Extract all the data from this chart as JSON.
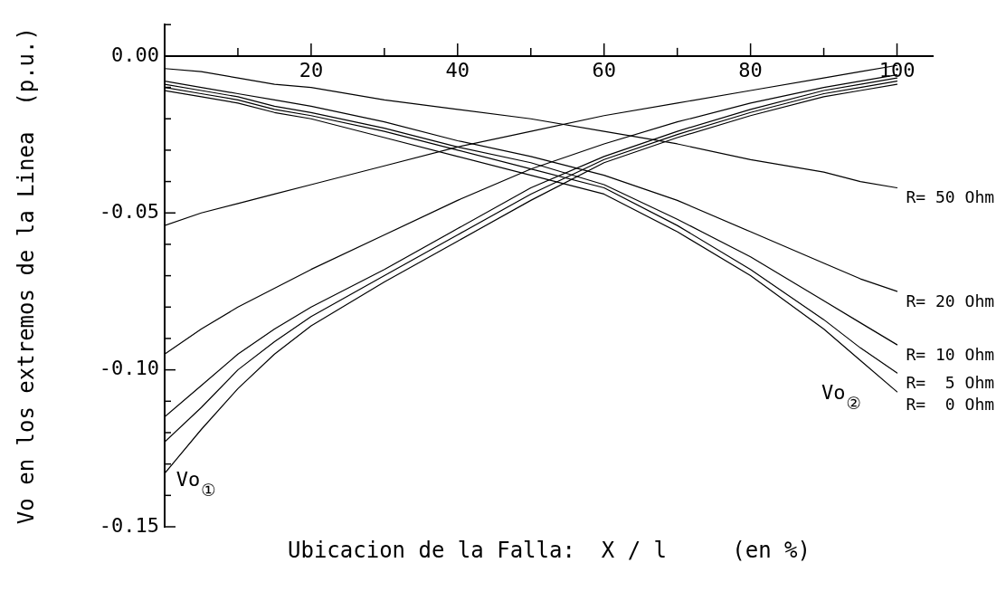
{
  "chart_data": {
    "type": "line",
    "xlabel": "Ubicacion de la Falla:  X / l     (en %)",
    "ylabel": "Vo en los extremos de la Linea  (p.u.)",
    "x": [
      0,
      5,
      10,
      15,
      20,
      30,
      40,
      50,
      60,
      70,
      80,
      90,
      95,
      100
    ],
    "series": [
      {
        "color": "#000000",
        "values": [
          -0.054,
          -0.05,
          -0.047,
          -0.044,
          -0.041,
          -0.035,
          -0.029,
          -0.024,
          -0.019,
          -0.015,
          -0.011,
          -0.007,
          -0.005,
          -0.003
        ]
      },
      {
        "color": "#000000",
        "values": [
          -0.095,
          -0.087,
          -0.08,
          -0.074,
          -0.068,
          -0.057,
          -0.046,
          -0.036,
          -0.028,
          -0.021,
          -0.015,
          -0.01,
          -0.008,
          -0.006
        ]
      },
      {
        "color": "#000000",
        "values": [
          -0.115,
          -0.105,
          -0.095,
          -0.087,
          -0.08,
          -0.068,
          -0.055,
          -0.042,
          -0.032,
          -0.024,
          -0.017,
          -0.011,
          -0.009,
          -0.007
        ]
      },
      {
        "color": "#000000",
        "values": [
          -0.123,
          -0.112,
          -0.1,
          -0.091,
          -0.083,
          -0.07,
          -0.057,
          -0.044,
          -0.033,
          -0.025,
          -0.018,
          -0.012,
          -0.01,
          -0.008
        ]
      },
      {
        "color": "#000000",
        "values": [
          -0.133,
          -0.119,
          -0.106,
          -0.095,
          -0.086,
          -0.072,
          -0.059,
          -0.046,
          -0.034,
          -0.026,
          -0.019,
          -0.013,
          -0.011,
          -0.009
        ]
      },
      {
        "name": "R= 50 Ohm",
        "color": "#000000",
        "values": [
          -0.004,
          -0.005,
          -0.007,
          -0.009,
          -0.01,
          -0.014,
          -0.017,
          -0.02,
          -0.024,
          -0.028,
          -0.033,
          -0.037,
          -0.04,
          -0.042
        ]
      },
      {
        "name": "R= 20 Ohm",
        "color": "#000000",
        "values": [
          -0.008,
          -0.01,
          -0.012,
          -0.014,
          -0.016,
          -0.021,
          -0.027,
          -0.032,
          -0.038,
          -0.046,
          -0.056,
          -0.066,
          -0.071,
          -0.075
        ]
      },
      {
        "name": "R= 10 Ohm",
        "color": "#000000",
        "values": [
          -0.009,
          -0.011,
          -0.013,
          -0.016,
          -0.018,
          -0.023,
          -0.029,
          -0.034,
          -0.041,
          -0.052,
          -0.064,
          -0.078,
          -0.085,
          -0.092
        ]
      },
      {
        "name": "R=  5 Ohm",
        "color": "#000000",
        "values": [
          -0.01,
          -0.012,
          -0.014,
          -0.017,
          -0.019,
          -0.024,
          -0.03,
          -0.036,
          -0.042,
          -0.054,
          -0.068,
          -0.084,
          -0.093,
          -0.101
        ]
      },
      {
        "name": "R=  0 Ohm",
        "color": "#000000",
        "values": [
          -0.011,
          -0.013,
          -0.015,
          -0.018,
          -0.02,
          -0.026,
          -0.032,
          -0.038,
          -0.044,
          -0.056,
          -0.07,
          -0.087,
          -0.097,
          -0.107
        ]
      }
    ],
    "xlim": [
      0,
      105
    ],
    "ylim": [
      -0.15,
      0.01
    ],
    "xticks": [
      {
        "value": 10,
        "label": null
      },
      20,
      {
        "value": 30,
        "label": null
      },
      40,
      {
        "value": 50,
        "label": null
      },
      60,
      {
        "value": 70,
        "label": null
      },
      80,
      {
        "value": 90,
        "label": null
      },
      100
    ],
    "yticks": [
      {
        "value": 0.01,
        "label": null
      },
      {
        "value": 0,
        "label": "0.00"
      },
      {
        "value": -0.01,
        "label": null
      },
      {
        "value": -0.02,
        "label": null
      },
      {
        "value": -0.03,
        "label": null
      },
      {
        "value": -0.04,
        "label": null
      },
      {
        "value": -0.05,
        "label": "-0.05"
      },
      {
        "value": -0.06,
        "label": null
      },
      {
        "value": -0.07,
        "label": null
      },
      {
        "value": -0.08,
        "label": null
      },
      {
        "value": -0.09,
        "label": null
      },
      {
        "value": -0.1,
        "label": "-0.10"
      },
      {
        "value": -0.11,
        "label": null
      },
      {
        "value": -0.12,
        "label": null
      },
      {
        "value": -0.13,
        "label": null
      },
      {
        "value": -0.14,
        "label": null
      },
      {
        "value": -0.15,
        "label": "-0.15"
      }
    ],
    "annotations": [
      "Vo$_{①}$",
      "Vo$_{②}$"
    ]
  }
}
